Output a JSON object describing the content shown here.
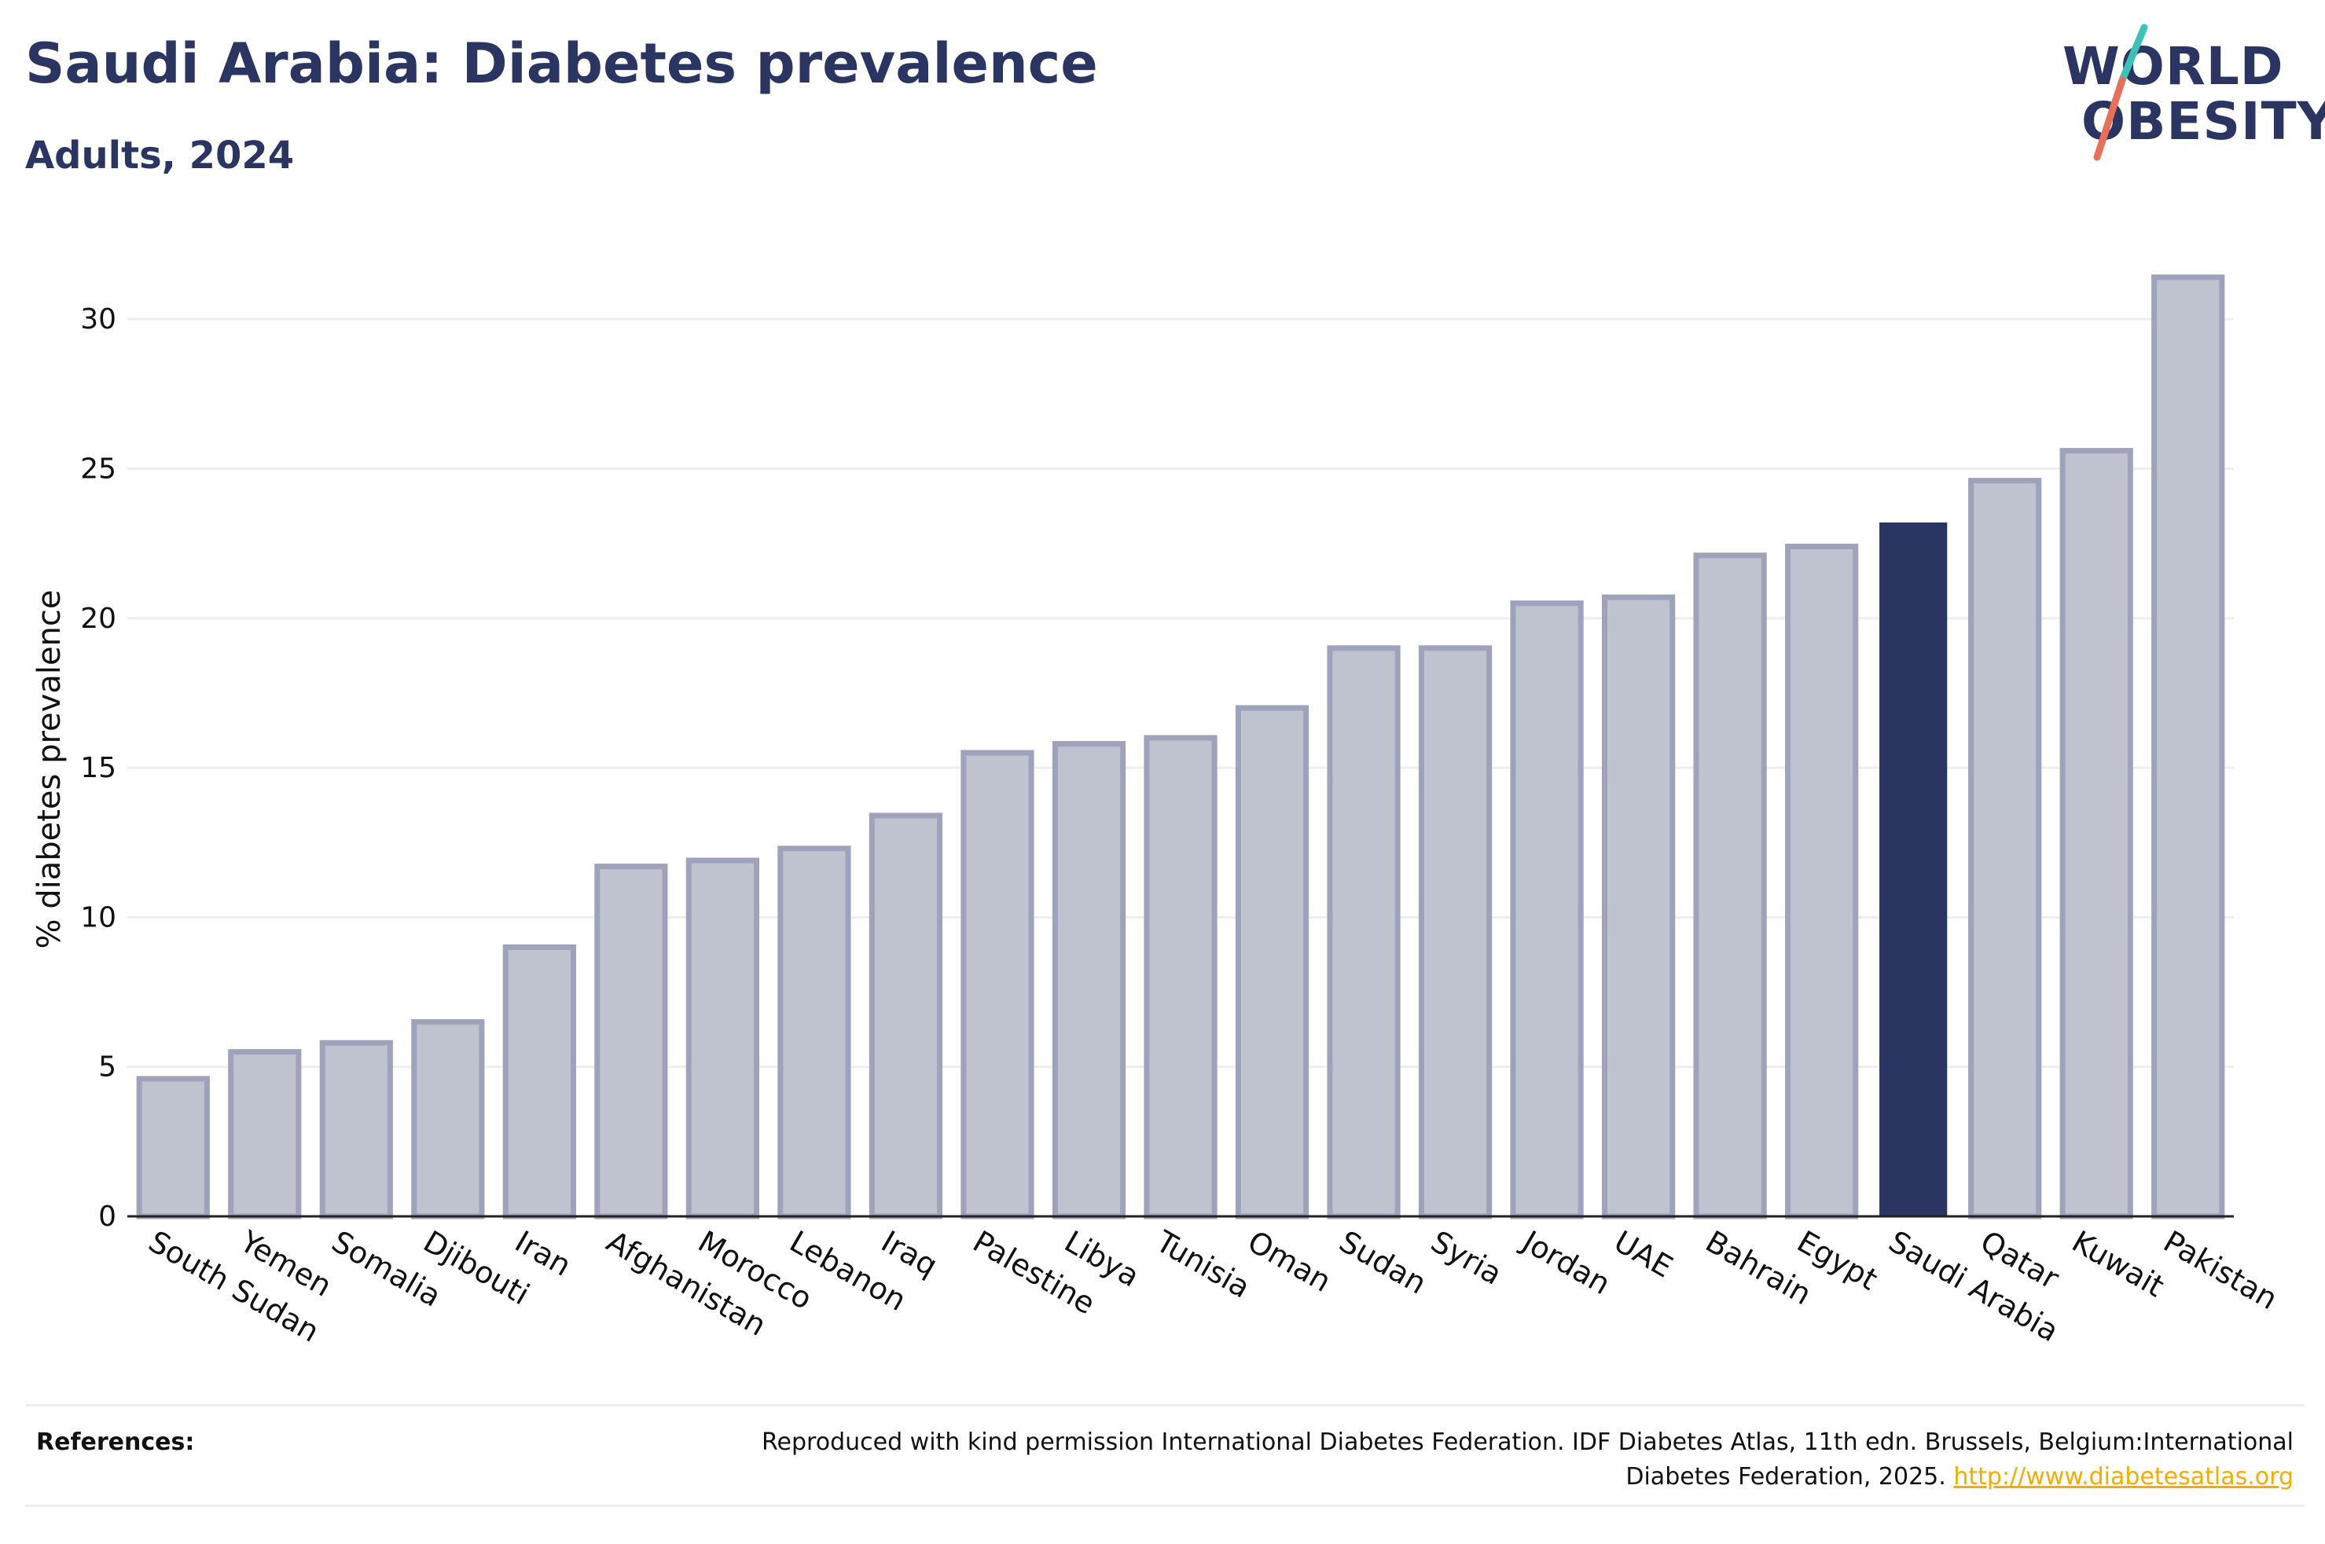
{
  "header": {
    "title": "Saudi Arabia: Diabetes prevalence",
    "subtitle": "Adults, 2024"
  },
  "logo": {
    "line1": "WORLD",
    "line2": "OBESITY",
    "icon": "world-obesity-slash-logo",
    "colors": {
      "text": "#2a3561",
      "slash_top": "#3fc1b8",
      "slash_bottom": "#e8705a"
    }
  },
  "chart_data": {
    "type": "bar",
    "title": "Saudi Arabia: Diabetes prevalence",
    "subtitle": "Adults, 2024",
    "xlabel": "",
    "ylabel": "% diabetes prevalence",
    "ylim": [
      0,
      32
    ],
    "yticks": [
      0,
      5,
      10,
      15,
      20,
      25,
      30
    ],
    "grid": true,
    "highlight": "Saudi Arabia",
    "colors": {
      "bar": "#bfc2cf",
      "bar_border": "#9ea3bb",
      "highlight": "#2a3561",
      "grid": "#eceef3"
    },
    "categories": [
      "South Sudan",
      "Yemen",
      "Somalia",
      "Djibouti",
      "Iran",
      "Afghanistan",
      "Morocco",
      "Lebanon",
      "Iraq",
      "Palestine",
      "Libya",
      "Tunisia",
      "Oman",
      "Sudan",
      "Syria",
      "Jordan",
      "UAE",
      "Bahrain",
      "Egypt",
      "Saudi Arabia",
      "Qatar",
      "Kuwait",
      "Pakistan"
    ],
    "values": [
      4.6,
      5.5,
      5.8,
      6.5,
      9.0,
      11.7,
      11.9,
      12.3,
      13.4,
      15.5,
      15.8,
      16.0,
      17.0,
      19.0,
      19.0,
      20.5,
      20.7,
      22.1,
      22.4,
      23.2,
      24.6,
      25.6,
      31.4
    ]
  },
  "references": {
    "label": "References:",
    "text": "Reproduced with kind permission International Diabetes Federation. IDF Diabetes Atlas, 11th edn. Brussels, Belgium:International Diabetes Federation, 2025.",
    "link": "http://www.diabetesatlas.org"
  }
}
